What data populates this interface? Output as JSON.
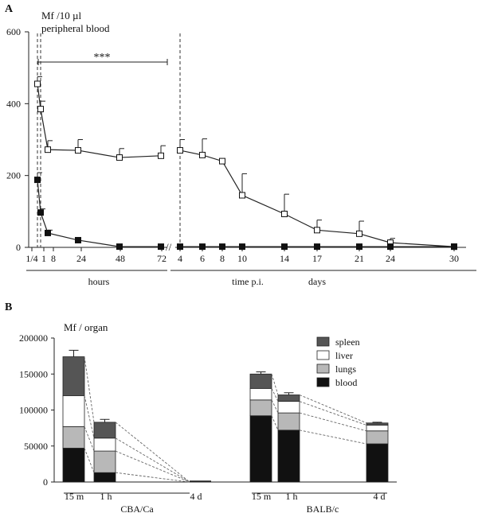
{
  "panel_a_label": "A",
  "panel_b_label": "B",
  "chart_data": [
    {
      "type": "line",
      "panel": "A",
      "title": "Mf /10 µl peripheral blood",
      "title_line1": "Mf /10 µl",
      "title_line2": "peripheral blood",
      "ylim": [
        0,
        600
      ],
      "yticks": [
        0,
        200,
        400,
        600
      ],
      "hours_ticks": [
        {
          "label": "1/4",
          "t": 0.25
        },
        {
          "label": "1",
          "t": 1
        },
        {
          "label": "8",
          "t": 8
        },
        {
          "label": "24",
          "t": 24
        },
        {
          "label": "48",
          "t": 48
        },
        {
          "label": "72",
          "t": 72
        }
      ],
      "days_ticks": [
        "4",
        "6",
        "8",
        "10",
        "14",
        "17",
        "21",
        "24",
        "30"
      ],
      "group_labels": {
        "hours": "hours",
        "time": "time p.i.",
        "days": "days"
      },
      "significance": "***",
      "series": [
        {
          "name": "open squares",
          "marker": "open-square",
          "hours": [
            {
              "t": 0.25,
              "y": 455,
              "err": 20
            },
            {
              "t": 1,
              "y": 385,
              "err": 22
            },
            {
              "t": 3,
              "y": 272,
              "err": 25
            },
            {
              "t": 24,
              "y": 270,
              "err": 30
            },
            {
              "t": 48,
              "y": 250,
              "err": 25
            },
            {
              "t": 72,
              "y": 255,
              "err": 28
            }
          ],
          "days": [
            {
              "day": 4,
              "y": 270,
              "err": 30
            },
            {
              "day": 6,
              "y": 257,
              "err": 45
            },
            {
              "day": 8,
              "y": 240,
              "err": 0
            },
            {
              "day": 10,
              "y": 145,
              "err": 60
            },
            {
              "day": 14,
              "y": 93,
              "err": 55
            },
            {
              "day": 17,
              "y": 48,
              "err": 28
            },
            {
              "day": 21,
              "y": 38,
              "err": 35
            },
            {
              "day": 24,
              "y": 13,
              "err": 12
            },
            {
              "day": 30,
              "y": 2,
              "err": 0
            }
          ]
        },
        {
          "name": "filled squares",
          "marker": "filled-square",
          "hours": [
            {
              "t": 0.25,
              "y": 188,
              "err": 20
            },
            {
              "t": 1,
              "y": 97,
              "err": 10
            },
            {
              "t": 3,
              "y": 40,
              "err": 8
            },
            {
              "t": 24,
              "y": 20,
              "err": 0
            },
            {
              "t": 48,
              "y": 2,
              "err": 0
            },
            {
              "t": 72,
              "y": 2,
              "err": 0
            }
          ],
          "days": [
            {
              "day": 4,
              "y": 2,
              "err": 0
            },
            {
              "day": 6,
              "y": 2,
              "err": 0
            },
            {
              "day": 8,
              "y": 2,
              "err": 0
            },
            {
              "day": 10,
              "y": 2,
              "err": 0
            },
            {
              "day": 14,
              "y": 2,
              "err": 0
            },
            {
              "day": 17,
              "y": 2,
              "err": 0
            },
            {
              "day": 21,
              "y": 2,
              "err": 0
            },
            {
              "day": 24,
              "y": 2,
              "err": 0
            },
            {
              "day": 30,
              "y": 2,
              "err": 0
            }
          ]
        }
      ]
    },
    {
      "type": "bar",
      "stacked": true,
      "panel": "B",
      "ylabel": "Mf / organ",
      "ylim": [
        0,
        200000
      ],
      "yticks": [
        0,
        50000,
        100000,
        150000,
        200000
      ],
      "legend": [
        {
          "name": "spleen",
          "color": "#555555"
        },
        {
          "name": "liver",
          "color": "#ffffff"
        },
        {
          "name": "lungs",
          "color": "#b8b8b8"
        },
        {
          "name": "blood",
          "color": "#111111"
        }
      ],
      "stack_order": [
        "blood",
        "lungs",
        "liver",
        "spleen"
      ],
      "groups": [
        {
          "name": "CBA/Ca",
          "bars": [
            {
              "label": "15 m",
              "blood": 47000,
              "lungs": 30000,
              "liver": 43000,
              "spleen": 54000,
              "seg_err": [
                7000,
                5000,
                8000,
                9000
              ]
            },
            {
              "label": "1 h",
              "blood": 13000,
              "lungs": 30000,
              "liver": 18000,
              "spleen": 22000,
              "seg_err": [
                4000,
                3000,
                3000,
                4000
              ]
            },
            {
              "label": "4 d",
              "blood": 0,
              "lungs": 0,
              "liver": 0,
              "spleen": 0,
              "seg_err": [
                0,
                0,
                0,
                0
              ]
            }
          ]
        },
        {
          "name": "BALB/c",
          "bars": [
            {
              "label": "15 m",
              "blood": 92000,
              "lungs": 22000,
              "liver": 16000,
              "spleen": 20000,
              "seg_err": [
                5000,
                3000,
                3000,
                3000
              ]
            },
            {
              "label": "1 h",
              "blood": 72000,
              "lungs": 24000,
              "liver": 16000,
              "spleen": 9000,
              "seg_err": [
                4000,
                6000,
                3000,
                3000
              ]
            },
            {
              "label": "4 d",
              "blood": 53000,
              "lungs": 18000,
              "liver": 8000,
              "spleen": 3000,
              "seg_err": [
                3000,
                3000,
                2000,
                1000
              ]
            }
          ]
        }
      ]
    }
  ]
}
